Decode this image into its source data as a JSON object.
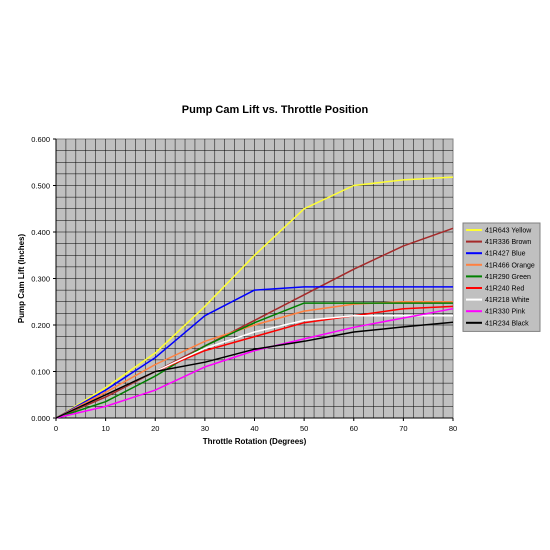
{
  "chart_data": {
    "type": "line",
    "title": "Pump Cam Lift vs. Throttle Position",
    "xlabel": "Throttle Rotation (Degrees)",
    "ylabel": "Pump Cam Lift (Inches)",
    "xlim": [
      0,
      80
    ],
    "ylim": [
      0,
      0.6
    ],
    "x_ticks": [
      "0",
      "10",
      "20",
      "30",
      "40",
      "50",
      "60",
      "70",
      "80"
    ],
    "y_ticks": [
      "0.000",
      "0.100",
      "0.200",
      "0.300",
      "0.400",
      "0.500",
      "0.600"
    ],
    "grid": true,
    "plot_background": "#c0c0c0",
    "grid_color": "#000000",
    "legend_position": "right",
    "series": [
      {
        "name": "41R643 Yellow",
        "color": "#ffff33",
        "points": [
          [
            0,
            0
          ],
          [
            10,
            0.065
          ],
          [
            20,
            0.14
          ],
          [
            30,
            0.24
          ],
          [
            40,
            0.35
          ],
          [
            50,
            0.45
          ],
          [
            60,
            0.5
          ],
          [
            70,
            0.512
          ],
          [
            80,
            0.518
          ]
        ]
      },
      {
        "name": "41R336 Brown",
        "color": "#a52a2a",
        "points": [
          [
            0,
            0
          ],
          [
            10,
            0.045
          ],
          [
            20,
            0.1
          ],
          [
            30,
            0.155
          ],
          [
            40,
            0.21
          ],
          [
            50,
            0.265
          ],
          [
            60,
            0.32
          ],
          [
            70,
            0.37
          ],
          [
            80,
            0.408
          ]
        ]
      },
      {
        "name": "41R427 Blue",
        "color": "#0000ff",
        "points": [
          [
            0,
            0
          ],
          [
            10,
            0.06
          ],
          [
            20,
            0.13
          ],
          [
            30,
            0.22
          ],
          [
            40,
            0.275
          ],
          [
            50,
            0.282
          ],
          [
            60,
            0.282
          ],
          [
            70,
            0.282
          ],
          [
            80,
            0.282
          ]
        ]
      },
      {
        "name": "41R466 Orange",
        "color": "#ff8040",
        "points": [
          [
            0,
            0
          ],
          [
            10,
            0.055
          ],
          [
            20,
            0.115
          ],
          [
            30,
            0.165
          ],
          [
            40,
            0.2
          ],
          [
            50,
            0.23
          ],
          [
            60,
            0.245
          ],
          [
            70,
            0.25
          ],
          [
            80,
            0.25
          ]
        ]
      },
      {
        "name": "41R290 Green",
        "color": "#008000",
        "points": [
          [
            0,
            0
          ],
          [
            10,
            0.035
          ],
          [
            20,
            0.09
          ],
          [
            30,
            0.155
          ],
          [
            40,
            0.205
          ],
          [
            50,
            0.247
          ],
          [
            60,
            0.247
          ],
          [
            70,
            0.247
          ],
          [
            80,
            0.247
          ]
        ]
      },
      {
        "name": "41R240 Red",
        "color": "#ff0000",
        "points": [
          [
            0,
            0
          ],
          [
            10,
            0.05
          ],
          [
            20,
            0.1
          ],
          [
            30,
            0.145
          ],
          [
            40,
            0.175
          ],
          [
            50,
            0.205
          ],
          [
            60,
            0.22
          ],
          [
            70,
            0.235
          ],
          [
            80,
            0.24
          ]
        ]
      },
      {
        "name": "41R218 White",
        "color": "#ffffff",
        "points": [
          [
            0,
            0
          ],
          [
            10,
            0.05
          ],
          [
            20,
            0.1
          ],
          [
            30,
            0.15
          ],
          [
            40,
            0.185
          ],
          [
            50,
            0.21
          ],
          [
            60,
            0.22
          ],
          [
            70,
            0.22
          ],
          [
            80,
            0.22
          ]
        ]
      },
      {
        "name": "41R330 Pink",
        "color": "#ff00ff",
        "points": [
          [
            0,
            0
          ],
          [
            10,
            0.025
          ],
          [
            20,
            0.06
          ],
          [
            30,
            0.11
          ],
          [
            40,
            0.145
          ],
          [
            50,
            0.17
          ],
          [
            60,
            0.195
          ],
          [
            70,
            0.215
          ],
          [
            80,
            0.235
          ]
        ]
      },
      {
        "name": "41R234 Black",
        "color": "#000000",
        "points": [
          [
            0,
            0
          ],
          [
            10,
            0.05
          ],
          [
            20,
            0.1
          ],
          [
            30,
            0.12
          ],
          [
            40,
            0.148
          ],
          [
            50,
            0.165
          ],
          [
            60,
            0.185
          ],
          [
            70,
            0.196
          ],
          [
            80,
            0.206
          ]
        ]
      }
    ]
  }
}
